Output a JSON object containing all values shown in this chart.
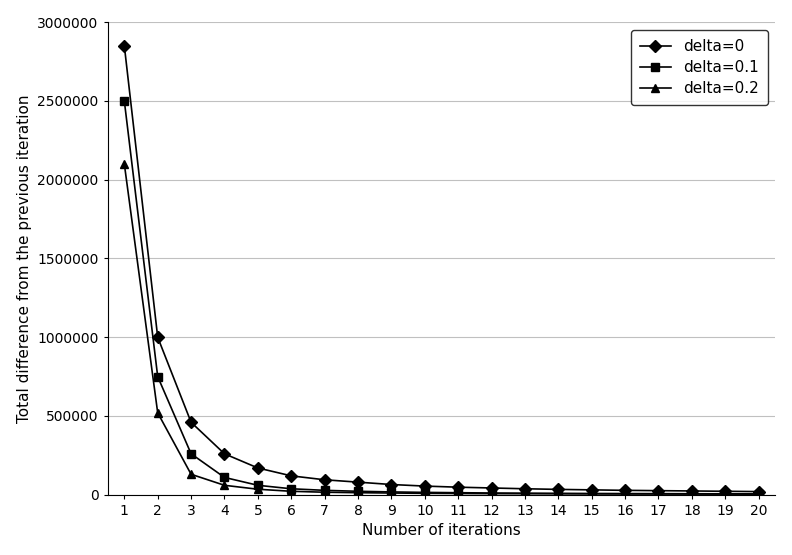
{
  "title": "",
  "xlabel": "Number of iterations",
  "ylabel": "Total difference from the previous iteration",
  "xlim_min": 0.5,
  "xlim_max": 20.5,
  "ylim": [
    0,
    3000000
  ],
  "yticks": [
    0,
    500000,
    1000000,
    1500000,
    2000000,
    2500000,
    3000000
  ],
  "xticks": [
    1,
    2,
    3,
    4,
    5,
    6,
    7,
    8,
    9,
    10,
    11,
    12,
    13,
    14,
    15,
    16,
    17,
    18,
    19,
    20
  ],
  "series": [
    {
      "label": "delta=0",
      "marker": "D",
      "color": "#000000",
      "markersize": 6,
      "values": [
        2850000,
        1000000,
        460000,
        260000,
        170000,
        120000,
        95000,
        80000,
        65000,
        55000,
        48000,
        43000,
        38000,
        34000,
        31000,
        28000,
        26000,
        24000,
        22000,
        20000
      ]
    },
    {
      "label": "delta=0.1",
      "marker": "s",
      "color": "#000000",
      "markersize": 6,
      "values": [
        2500000,
        750000,
        260000,
        110000,
        60000,
        38000,
        28000,
        22000,
        18000,
        15000,
        13000,
        11000,
        10000,
        9000,
        8000,
        7500,
        7000,
        6500,
        6000,
        5500
      ]
    },
    {
      "label": "delta=0.2",
      "marker": "^",
      "color": "#000000",
      "markersize": 6,
      "values": [
        2100000,
        520000,
        130000,
        60000,
        35000,
        22000,
        16000,
        13000,
        11000,
        9000,
        8000,
        7000,
        6500,
        6000,
        5500,
        5000,
        4700,
        4400,
        4200,
        4000
      ]
    }
  ],
  "legend_loc": "upper right",
  "background_color": "#ffffff",
  "grid_color": "#c0c0c0",
  "xlabel_fontsize": 11,
  "ylabel_fontsize": 11,
  "tick_fontsize": 10,
  "legend_fontsize": 11
}
